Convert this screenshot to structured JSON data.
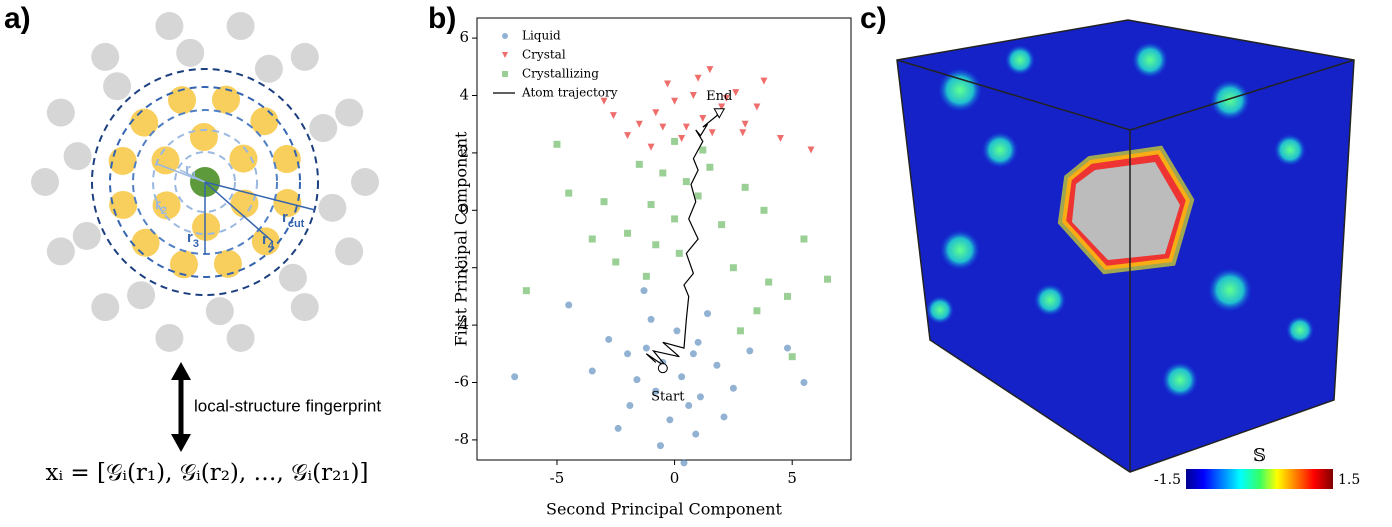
{
  "panel_labels": [
    "a)",
    "b)",
    "c)"
  ],
  "diagram": {
    "radius_labels": [
      {
        "base": "r",
        "sub": "1"
      },
      {
        "base": "r",
        "sub": "2"
      },
      {
        "base": "r",
        "sub": "3"
      },
      {
        "base": "r",
        "sub": "4"
      },
      {
        "base": "r",
        "sub": "cut"
      }
    ],
    "arrow_label": "local-structure fingerprint",
    "formula": "xᵢ = [𝒢ᵢ(r₁), 𝒢ᵢ(r₂), …, 𝒢ᵢ(r₂₁)]"
  },
  "chart_data": {
    "type": "scatter",
    "xlabel": "Second Principal Component",
    "ylabel": "First Principal Component",
    "xlim": [
      -8.4,
      7.5
    ],
    "ylim": [
      -8.7,
      6.7
    ],
    "xticks": [
      -5,
      0,
      5
    ],
    "yticks": [
      -8,
      -6,
      -4,
      -2,
      0,
      2,
      4,
      6
    ],
    "legend": "upper left",
    "series": [
      {
        "name": "Liquid",
        "color": "#4a7fb5",
        "marker": "circle",
        "x": [
          -0.5,
          -1.2,
          0.3,
          -2.0,
          1.0,
          -0.8,
          0.6,
          -1.6,
          1.8,
          -2.8,
          2.5,
          -0.2,
          0.9,
          -1.0,
          -3.5,
          3.2,
          0.1,
          -1.9,
          1.4,
          -0.6,
          -4.5,
          4.8,
          -6.8,
          5.5,
          0.4,
          -1.3,
          2.1,
          -2.4,
          0.8,
          1.1
        ],
        "y": [
          -5.3,
          -4.8,
          -5.8,
          -5.0,
          -4.6,
          -6.3,
          -6.8,
          -5.9,
          -5.4,
          -4.5,
          -6.2,
          -7.3,
          -7.8,
          -3.8,
          -5.6,
          -4.9,
          -4.2,
          -6.8,
          -3.6,
          -8.2,
          -3.3,
          -4.8,
          -5.8,
          -6.0,
          -8.8,
          -2.8,
          -7.2,
          -7.6,
          -5.0,
          -6.5
        ]
      },
      {
        "name": "Crystal",
        "color": "#e8302e",
        "marker": "triangle-down",
        "x": [
          -1.5,
          -0.8,
          0,
          0.5,
          1.2,
          2.0,
          2.6,
          3.0,
          -2.0,
          -0.3,
          0.8,
          1.6,
          3.5,
          -2.6,
          1.0,
          2.2,
          -1.0,
          0.3,
          4.5,
          5.8,
          -3.0,
          3.8,
          1.5,
          -0.5,
          2.9
        ],
        "y": [
          3.0,
          3.4,
          3.8,
          2.9,
          3.2,
          3.6,
          4.1,
          3.0,
          2.6,
          4.4,
          4.0,
          2.7,
          3.6,
          3.3,
          4.6,
          3.9,
          2.2,
          2.5,
          2.5,
          2.1,
          3.8,
          4.5,
          4.9,
          2.9,
          2.7
        ]
      },
      {
        "name": "Crystallizing",
        "color": "#56b04f",
        "marker": "square",
        "x": [
          -1.0,
          0,
          1.0,
          -2.0,
          2.0,
          -0.5,
          0.5,
          -1.5,
          1.5,
          -3.0,
          3.0,
          0.2,
          -0.8,
          2.5,
          -2.5,
          -4.5,
          4.0,
          5.5,
          6.5,
          3.5,
          -5.0,
          -6.3,
          4.8,
          2.8,
          -1.2,
          1.2,
          0.0,
          -3.5,
          3.8,
          5.0
        ],
        "y": [
          0.2,
          -0.3,
          0.5,
          -0.8,
          -0.5,
          1.3,
          1.0,
          1.6,
          1.5,
          0.3,
          0.8,
          -1.5,
          -1.2,
          -2.0,
          -1.8,
          0.6,
          -2.5,
          -1.0,
          -2.4,
          -3.5,
          2.3,
          -2.8,
          -3.0,
          -4.2,
          -2.3,
          2.1,
          2.4,
          -1.0,
          0.0,
          -5.1
        ]
      }
    ],
    "trajectory": {
      "name": "Atom trajectory",
      "color": "#000000",
      "x": [
        -0.8,
        -1.2,
        -0.3,
        -0.9,
        0.2,
        -0.5,
        0.4,
        0.5,
        0.6,
        0.4,
        0.8,
        0.5,
        1.0,
        0.6,
        0.9,
        0.7,
        1.0,
        0.8,
        1.2,
        0.9,
        1.1,
        1.4,
        1.2,
        1.8,
        1.9
      ],
      "y": [
        -5.3,
        -5.0,
        -5.5,
        -4.9,
        -5.1,
        -4.6,
        -4.8,
        -3.8,
        -3.0,
        -2.6,
        -2.2,
        -1.5,
        -1.0,
        -0.3,
        0.3,
        0.9,
        1.4,
        1.8,
        2.4,
        2.8,
        2.6,
        3.0,
        2.9,
        3.3,
        3.5
      ]
    },
    "markers": {
      "start": {
        "label": "Start",
        "x": -0.5,
        "y": -5.5
      },
      "end": {
        "label": "End",
        "x": 1.9,
        "y": 3.4
      }
    }
  },
  "render": {
    "colorbar": {
      "title": "𝕊",
      "lim": [
        -1.5,
        1.5
      ],
      "ticks": [
        -1.5,
        1.5
      ]
    }
  }
}
